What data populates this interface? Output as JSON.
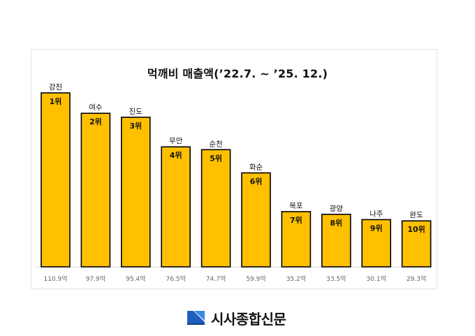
{
  "chart_data": {
    "type": "bar",
    "title": "먹깨비 매출액(’22.7. ~ ’25. 12.)",
    "categories": [
      "강진",
      "여수",
      "진도",
      "무안",
      "순천",
      "화순",
      "목포",
      "광양",
      "나주",
      "완도"
    ],
    "ranks": [
      "1위",
      "2위",
      "3위",
      "4위",
      "5위",
      "6위",
      "7위",
      "8위",
      "9위",
      "10위"
    ],
    "values": [
      110.9,
      97.9,
      95.4,
      76.5,
      74.7,
      59.9,
      35.2,
      33.5,
      30.1,
      29.3
    ],
    "value_labels": [
      "110.9억",
      "97.9억",
      "95.4억",
      "76.5억",
      "74.7억",
      "59.9억",
      "35.2억",
      "33.5억",
      "30.1억",
      "29.3억"
    ],
    "ylim": [
      0,
      110.9
    ],
    "grid": false,
    "colors": {
      "bar": "#FFC000",
      "outline": "#000000"
    }
  },
  "logo": {
    "text": "시사종합신문",
    "icon": "newspaper-logo-icon",
    "color": "#1F5FBF"
  }
}
